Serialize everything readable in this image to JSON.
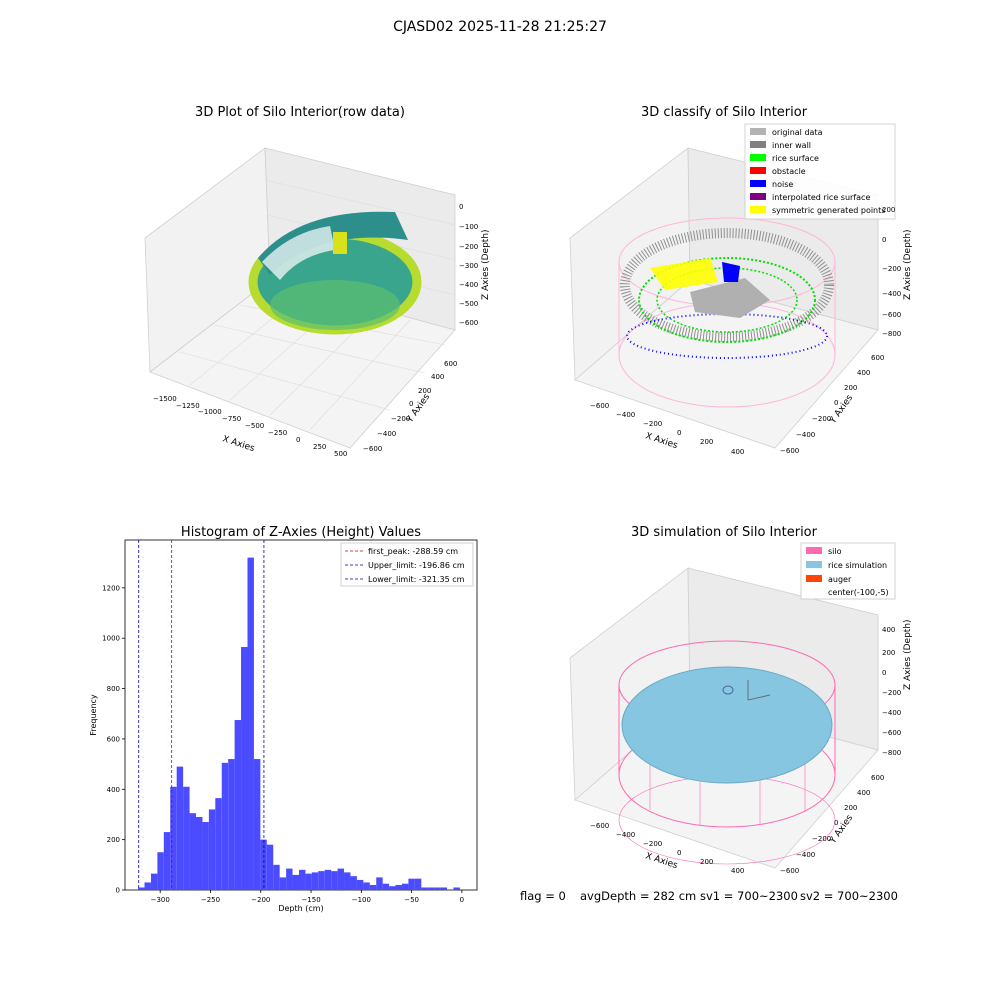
{
  "figure": {
    "suptitle": "CJASD02 2025-11-28 21:25:27",
    "footer": {
      "flag": "flag = 0",
      "avg_depth": "avgDepth = 282 cm",
      "sv1": "sv1 = 700~2300",
      "sv2": "sv2 = 700~2300"
    }
  },
  "colors": {
    "hist_bar": "#4b4bff",
    "first_peak_line": "#cc0000",
    "limit_line": "#0000aa",
    "viridis_low": "#2a9a8a",
    "viridis_high": "#c8e020",
    "silo": "#ff69b4",
    "rice_sim": "#87c6e0",
    "original_data": "#b3b3b3",
    "inner_wall": "#808080",
    "rice_surface": "#00ff00",
    "obstacle": "#ff0000",
    "noise": "#0000ff",
    "interp_rice": "#800080",
    "symmetric": "#ffff00",
    "auger": "#ff4500"
  },
  "chart_data": [
    {
      "type": "scatter3d",
      "title": "3D Plot of Silo Interior(row data)",
      "xlabel": "X Axies",
      "ylabel": "Y Axies",
      "zlabel": "Z Axies (Depth)",
      "x_ticks": [
        "−1500",
        "−1250",
        "−1000",
        "−750",
        "−500",
        "−250",
        "0",
        "250",
        "500"
      ],
      "y_ticks": [
        "−600",
        "−400",
        "−200",
        "0",
        "200",
        "400",
        "600"
      ],
      "z_ticks": [
        "0",
        "−100",
        "−200",
        "−300",
        "−400",
        "−500",
        "−600"
      ]
    },
    {
      "type": "scatter3d",
      "title": "3D classify of Silo Interior",
      "xlabel": "X Axies",
      "ylabel": "Y Axies",
      "zlabel": "Z Axies (Depth)",
      "legend_position": "upper-right",
      "legend": [
        {
          "label": "original data",
          "color": "#b3b3b3"
        },
        {
          "label": "inner wall",
          "color": "#808080"
        },
        {
          "label": "rice surface",
          "color": "#00ff00"
        },
        {
          "label": "obstacle",
          "color": "#ff0000"
        },
        {
          "label": "noise",
          "color": "#0000ff"
        },
        {
          "label": "interpolated rice surface",
          "color": "#800080"
        },
        {
          "label": "symmetric generated points",
          "color": "#ffff00"
        }
      ],
      "x_ticks": [
        "−600",
        "−400",
        "−200",
        "0",
        "200",
        "400"
      ],
      "y_ticks": [
        "−600",
        "−400",
        "−200",
        "0",
        "200",
        "400",
        "600"
      ],
      "z_ticks": [
        "200",
        "0",
        "−200",
        "−400",
        "−600",
        "−800"
      ]
    },
    {
      "type": "bar",
      "title": "Histogram of Z-Axies (Height) Values",
      "xlabel": "Depth (cm)",
      "ylabel": "Frequency",
      "xlim": [
        -335,
        15
      ],
      "ylim": [
        0,
        1390
      ],
      "x_ticks": [
        -300,
        -250,
        -200,
        -150,
        -100,
        -50,
        0
      ],
      "y_ticks": [
        0,
        200,
        400,
        600,
        800,
        1000,
        1200
      ],
      "bin_start": -322,
      "bin_width": 6.4,
      "values": [
        10,
        30,
        65,
        150,
        230,
        410,
        490,
        410,
        305,
        290,
        270,
        320,
        365,
        505,
        520,
        675,
        965,
        1320,
        520,
        200,
        180,
        100,
        50,
        85,
        60,
        80,
        65,
        70,
        75,
        80,
        75,
        85,
        70,
        55,
        40,
        30,
        20,
        50,
        25,
        15,
        20,
        25,
        45,
        45,
        10,
        10,
        10,
        10,
        0,
        10
      ],
      "vlines": [
        {
          "label": "first_peak: -288.59 cm",
          "x": -288.59,
          "color": "#cc0000"
        },
        {
          "label": "Upper_limit: -196.86 cm",
          "x": -196.86,
          "color": "#0000aa"
        },
        {
          "label": "Lower_limit: -321.35 cm",
          "x": -321.35,
          "color": "#0000aa"
        }
      ],
      "legend_position": "upper-right"
    },
    {
      "type": "surface3d",
      "title": "3D simulation of Silo Interior",
      "xlabel": "X Axies",
      "ylabel": "Y Axies",
      "zlabel": "Z Axies (Depth)",
      "legend_position": "upper-right",
      "legend": [
        {
          "label": "silo",
          "color": "#ff69b4"
        },
        {
          "label": "rice simulation",
          "color": "#87c6e0"
        },
        {
          "label": "auger",
          "color": "#ff4500"
        },
        {
          "label": "center(-100,-5)",
          "color": ""
        }
      ],
      "x_ticks": [
        "−600",
        "−400",
        "−200",
        "0",
        "200",
        "400"
      ],
      "y_ticks": [
        "−600",
        "−400",
        "−200",
        "0",
        "200",
        "400",
        "600"
      ],
      "z_ticks": [
        "400",
        "200",
        "0",
        "−200",
        "−400",
        "−600",
        "−800"
      ]
    }
  ]
}
